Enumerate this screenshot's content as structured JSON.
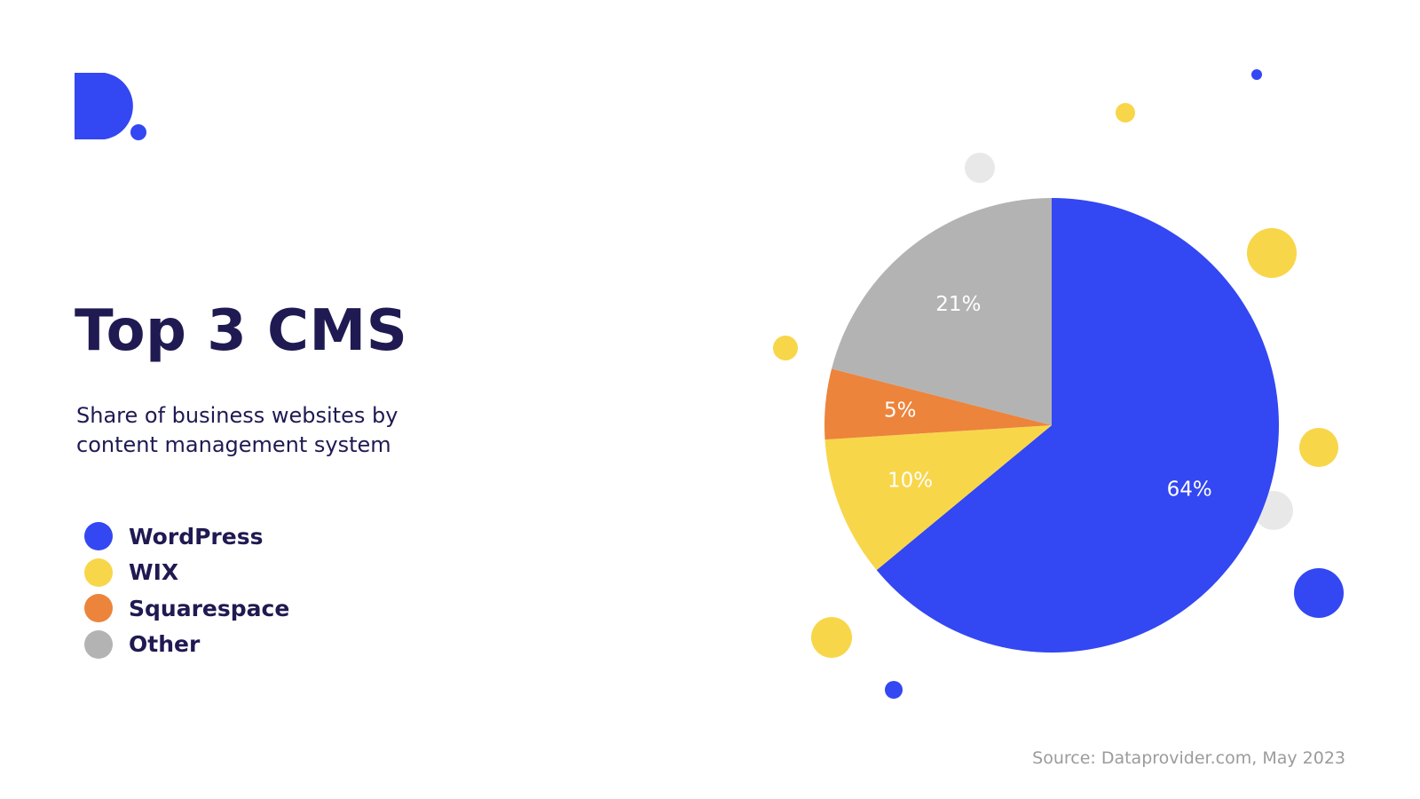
{
  "chart_data": {
    "type": "pie",
    "title": "Top 3 CMS",
    "subtitle": "Share of business websites by content management system",
    "categories": [
      "WordPress",
      "WIX",
      "Squarespace",
      "Other"
    ],
    "values": [
      64,
      10,
      5,
      21
    ],
    "value_labels": [
      "64%",
      "10%",
      "5%",
      "21%"
    ],
    "colors": [
      "#3347f2",
      "#f8d64a",
      "#ec843b",
      "#b3b3b3"
    ],
    "source": "Source: Dataprovider.com, May 2023"
  }
}
